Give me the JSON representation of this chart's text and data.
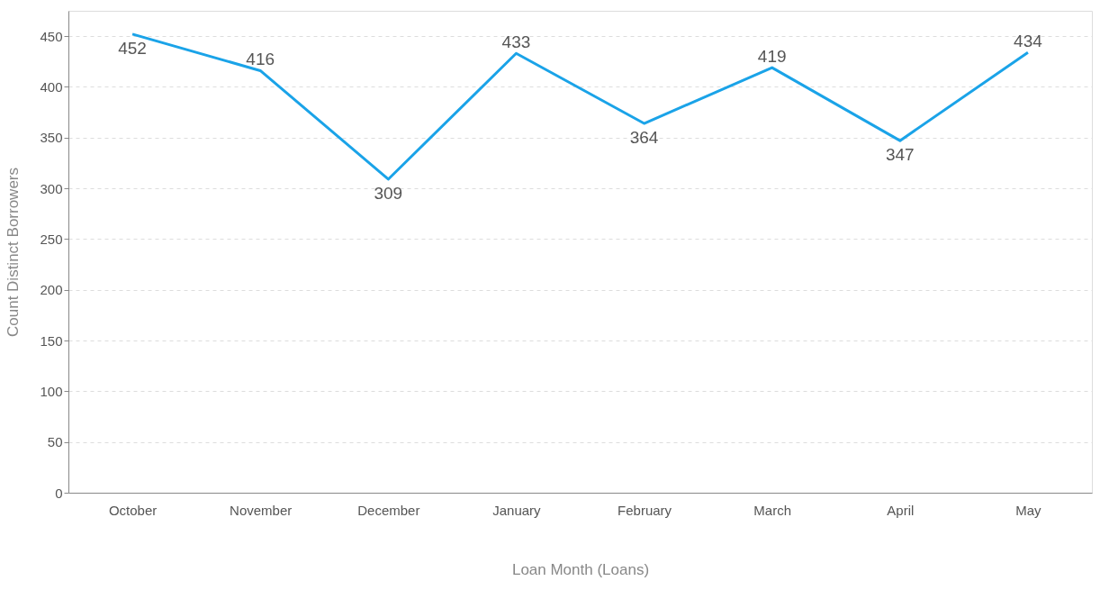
{
  "chart_data": {
    "type": "line",
    "xlabel": "Loan Month (Loans)",
    "ylabel": "Count Distinct Borrowers",
    "categories": [
      "October",
      "November",
      "December",
      "January",
      "February",
      "March",
      "April",
      "May"
    ],
    "series": [
      {
        "color": "#1aa3e8",
        "values": [
          452,
          416,
          309,
          433,
          364,
          419,
          347,
          434
        ]
      }
    ],
    "ylim": [
      0,
      475
    ],
    "yticks": [
      0,
      50,
      100,
      150,
      200,
      250,
      300,
      350,
      400,
      450
    ],
    "grid": "y",
    "data_labels": true,
    "marker": "none",
    "line_style": "solid"
  }
}
